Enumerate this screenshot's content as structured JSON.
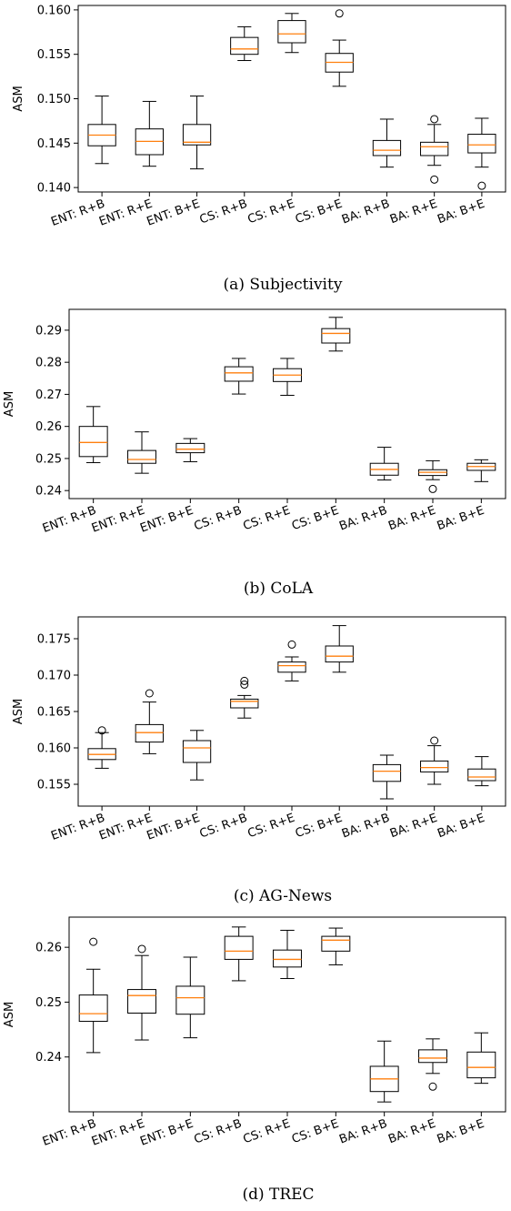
{
  "chart_data": [
    {
      "type": "box",
      "caption": "(a) Subjectivity",
      "ylabel": "ASM",
      "categories": [
        "ENT: R+B",
        "ENT: R+E",
        "ENT: B+E",
        "CS: R+B",
        "CS: R+E",
        "CS: B+E",
        "BA: R+B",
        "BA: R+E",
        "BA: B+E"
      ],
      "ylim": [
        0.1395,
        0.1605
      ],
      "yticks": [
        0.14,
        0.145,
        0.15,
        0.155,
        0.16
      ],
      "ytick_labels": [
        "0.140",
        "0.145",
        "0.150",
        "0.155",
        "0.160"
      ],
      "boxes": [
        {
          "whislo": 0.1427,
          "q1": 0.1447,
          "med": 0.1459,
          "q3": 0.1471,
          "whishi": 0.1503,
          "fliers": []
        },
        {
          "whislo": 0.1424,
          "q1": 0.1437,
          "med": 0.1452,
          "q3": 0.1466,
          "whishi": 0.1497,
          "fliers": []
        },
        {
          "whislo": 0.1421,
          "q1": 0.1448,
          "med": 0.1451,
          "q3": 0.1471,
          "whishi": 0.1503,
          "fliers": []
        },
        {
          "whislo": 0.1543,
          "q1": 0.155,
          "med": 0.1556,
          "q3": 0.1569,
          "whishi": 0.1581,
          "fliers": []
        },
        {
          "whislo": 0.1552,
          "q1": 0.1563,
          "med": 0.1573,
          "q3": 0.1588,
          "whishi": 0.1596,
          "fliers": []
        },
        {
          "whislo": 0.1514,
          "q1": 0.153,
          "med": 0.1541,
          "q3": 0.1551,
          "whishi": 0.1566,
          "fliers": [
            0.1596
          ]
        },
        {
          "whislo": 0.1423,
          "q1": 0.1436,
          "med": 0.1442,
          "q3": 0.1453,
          "whishi": 0.1477,
          "fliers": []
        },
        {
          "whislo": 0.1425,
          "q1": 0.1436,
          "med": 0.1446,
          "q3": 0.1451,
          "whishi": 0.1471,
          "fliers": [
            0.1477,
            0.1409
          ]
        },
        {
          "whislo": 0.1423,
          "q1": 0.1439,
          "med": 0.1448,
          "q3": 0.146,
          "whishi": 0.1478,
          "fliers": [
            0.1402
          ]
        }
      ]
    },
    {
      "type": "box",
      "caption": "(b) CoLA",
      "ylabel": "ASM",
      "categories": [
        "ENT: R+B",
        "ENT: R+E",
        "ENT: B+E",
        "CS: R+B",
        "CS: R+E",
        "CS: B+E",
        "BA: R+B",
        "BA: R+E",
        "BA: B+E"
      ],
      "ylim": [
        0.2375,
        0.2965
      ],
      "yticks": [
        0.24,
        0.25,
        0.26,
        0.27,
        0.28,
        0.29
      ],
      "ytick_labels": [
        "0.24",
        "0.25",
        "0.26",
        "0.27",
        "0.28",
        "0.29"
      ],
      "boxes": [
        {
          "whislo": 0.2487,
          "q1": 0.2506,
          "med": 0.255,
          "q3": 0.26,
          "whishi": 0.2662,
          "fliers": []
        },
        {
          "whislo": 0.2454,
          "q1": 0.2485,
          "med": 0.2497,
          "q3": 0.2525,
          "whishi": 0.2583,
          "fliers": []
        },
        {
          "whislo": 0.249,
          "q1": 0.2518,
          "med": 0.2529,
          "q3": 0.2547,
          "whishi": 0.2562,
          "fliers": []
        },
        {
          "whislo": 0.2701,
          "q1": 0.2741,
          "med": 0.2767,
          "q3": 0.2786,
          "whishi": 0.2812,
          "fliers": []
        },
        {
          "whislo": 0.2697,
          "q1": 0.274,
          "med": 0.276,
          "q3": 0.278,
          "whishi": 0.2812,
          "fliers": []
        },
        {
          "whislo": 0.2835,
          "q1": 0.286,
          "med": 0.289,
          "q3": 0.2905,
          "whishi": 0.294,
          "fliers": []
        },
        {
          "whislo": 0.2433,
          "q1": 0.2448,
          "med": 0.2466,
          "q3": 0.2485,
          "whishi": 0.2535,
          "fliers": []
        },
        {
          "whislo": 0.2434,
          "q1": 0.2447,
          "med": 0.2457,
          "q3": 0.2465,
          "whishi": 0.2493,
          "fliers": [
            0.2405
          ]
        },
        {
          "whislo": 0.2428,
          "q1": 0.2463,
          "med": 0.2475,
          "q3": 0.2485,
          "whishi": 0.2496,
          "fliers": []
        }
      ]
    },
    {
      "type": "box",
      "caption": "(c) AG-News",
      "ylabel": "ASM",
      "categories": [
        "ENT: R+B",
        "ENT: R+E",
        "ENT: B+E",
        "CS: R+B",
        "CS: R+E",
        "CS: B+E",
        "BA: R+B",
        "BA: R+E",
        "BA: B+E"
      ],
      "ylim": [
        0.152,
        0.178
      ],
      "yticks": [
        0.155,
        0.16,
        0.165,
        0.17,
        0.175
      ],
      "ytick_labels": [
        "0.155",
        "0.160",
        "0.165",
        "0.170",
        "0.175"
      ],
      "boxes": [
        {
          "whislo": 0.1572,
          "q1": 0.1584,
          "med": 0.1591,
          "q3": 0.1599,
          "whishi": 0.1621,
          "fliers": [
            0.1624
          ]
        },
        {
          "whislo": 0.1592,
          "q1": 0.1608,
          "med": 0.1621,
          "q3": 0.1632,
          "whishi": 0.1663,
          "fliers": [
            0.1675
          ]
        },
        {
          "whislo": 0.1556,
          "q1": 0.158,
          "med": 0.16,
          "q3": 0.161,
          "whishi": 0.1624,
          "fliers": []
        },
        {
          "whislo": 0.1641,
          "q1": 0.1655,
          "med": 0.1664,
          "q3": 0.1667,
          "whishi": 0.1672,
          "fliers": [
            0.1687,
            0.1692
          ]
        },
        {
          "whislo": 0.1692,
          "q1": 0.1704,
          "med": 0.1713,
          "q3": 0.1718,
          "whishi": 0.1725,
          "fliers": [
            0.1742
          ]
        },
        {
          "whislo": 0.1704,
          "q1": 0.1718,
          "med": 0.1726,
          "q3": 0.174,
          "whishi": 0.1768,
          "fliers": []
        },
        {
          "whislo": 0.153,
          "q1": 0.1554,
          "med": 0.1568,
          "q3": 0.1577,
          "whishi": 0.159,
          "fliers": []
        },
        {
          "whislo": 0.155,
          "q1": 0.1567,
          "med": 0.1573,
          "q3": 0.1582,
          "whishi": 0.1603,
          "fliers": [
            0.161
          ]
        },
        {
          "whislo": 0.1548,
          "q1": 0.1555,
          "med": 0.156,
          "q3": 0.1571,
          "whishi": 0.1588,
          "fliers": []
        }
      ]
    },
    {
      "type": "box",
      "caption": "(d) TREC",
      "ylabel": "ASM",
      "categories": [
        "ENT: R+B",
        "ENT: R+E",
        "ENT: B+E",
        "CS: R+B",
        "CS: R+E",
        "CS: B+E",
        "BA: R+B",
        "BA: R+E",
        "BA: B+E"
      ],
      "ylim": [
        0.23,
        0.2655
      ],
      "yticks": [
        0.24,
        0.25,
        0.26
      ],
      "ytick_labels": [
        "0.24",
        "0.25",
        "0.26"
      ],
      "boxes": [
        {
          "whislo": 0.2408,
          "q1": 0.2465,
          "med": 0.2479,
          "q3": 0.2513,
          "whishi": 0.256,
          "fliers": [
            0.261
          ]
        },
        {
          "whislo": 0.2431,
          "q1": 0.248,
          "med": 0.2512,
          "q3": 0.2523,
          "whishi": 0.2585,
          "fliers": [
            0.2597
          ]
        },
        {
          "whislo": 0.2435,
          "q1": 0.2478,
          "med": 0.2508,
          "q3": 0.2529,
          "whishi": 0.2582,
          "fliers": []
        },
        {
          "whislo": 0.2539,
          "q1": 0.2578,
          "med": 0.2593,
          "q3": 0.262,
          "whishi": 0.2637,
          "fliers": []
        },
        {
          "whislo": 0.2543,
          "q1": 0.2564,
          "med": 0.2578,
          "q3": 0.2595,
          "whishi": 0.2631,
          "fliers": []
        },
        {
          "whislo": 0.2568,
          "q1": 0.2593,
          "med": 0.2613,
          "q3": 0.262,
          "whishi": 0.2635,
          "fliers": []
        },
        {
          "whislo": 0.2318,
          "q1": 0.2337,
          "med": 0.236,
          "q3": 0.2383,
          "whishi": 0.2429,
          "fliers": []
        },
        {
          "whislo": 0.237,
          "q1": 0.239,
          "med": 0.2398,
          "q3": 0.2413,
          "whishi": 0.2433,
          "fliers": [
            0.2346
          ]
        },
        {
          "whislo": 0.2352,
          "q1": 0.2362,
          "med": 0.2381,
          "q3": 0.2409,
          "whishi": 0.2444,
          "fliers": []
        }
      ]
    }
  ],
  "colors": {
    "box": "#000000",
    "median": "#ff7f0e",
    "flier": "#000000"
  }
}
